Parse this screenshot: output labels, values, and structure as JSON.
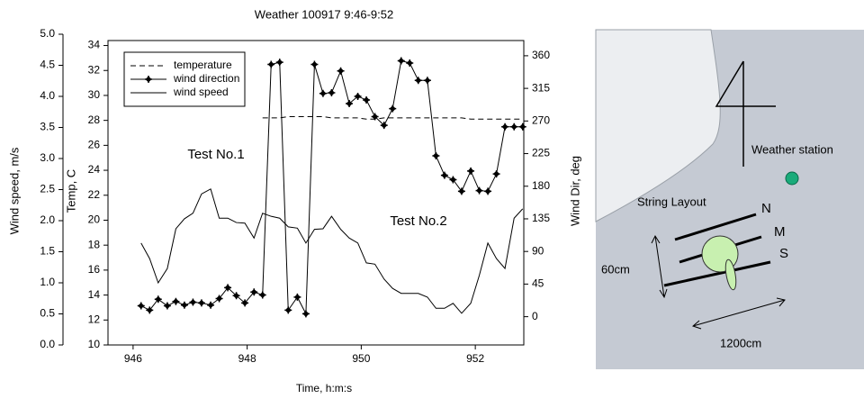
{
  "chart_data": {
    "type": "line",
    "title": "Weather 100917 9:46-9:52",
    "x_label": "Time, h:m:s",
    "y_label": "Temp, C",
    "y2_label": "Wind Dir, deg",
    "y3_label": "Wind speed, m/s",
    "annotations": [
      "Test No.1",
      "Test No.2"
    ],
    "legend": "upper left",
    "x": [
      946.14,
      946.29,
      946.44,
      946.6,
      946.75,
      946.9,
      947.05,
      947.2,
      947.36,
      947.51,
      947.66,
      947.81,
      947.96,
      948.12,
      948.27,
      948.42,
      948.57,
      948.72,
      948.88,
      949.03,
      949.18,
      949.33,
      949.48,
      949.64,
      949.79,
      949.94,
      950.09,
      950.24,
      950.4,
      950.55,
      950.7,
      950.85,
      951.0,
      951.16,
      951.31,
      951.46,
      951.61,
      951.76,
      951.92,
      952.07,
      952.22,
      952.37,
      952.52,
      952.68,
      952.83
    ],
    "xlim": [
      945.56,
      952.85
    ],
    "xticks": [
      946,
      948,
      950,
      952
    ],
    "ylim": [
      10,
      34.4
    ],
    "yticks": [
      10,
      12,
      14,
      16,
      18,
      20,
      22,
      24,
      26,
      28,
      30,
      32,
      34
    ],
    "y2lim": [
      -39,
      381
    ],
    "y2ticks": [
      0,
      45,
      90,
      135,
      180,
      225,
      270,
      315,
      360
    ],
    "y3lim": [
      0,
      5
    ],
    "y3ticks": [
      {
        "value": 0,
        "label": "0.0"
      },
      0.5,
      {
        "value": 1,
        "label": "1.0"
      },
      1.5,
      {
        "value": 2,
        "label": "2.0"
      },
      2.5,
      {
        "value": 3,
        "label": "3.0"
      },
      3.5,
      {
        "value": 4,
        "label": "4.0"
      },
      4.5,
      {
        "value": 5,
        "label": "5.0"
      }
    ],
    "series": [
      {
        "name": "temperature",
        "color": "#000000",
        "dash": true,
        "values": [
          null,
          null,
          null,
          null,
          null,
          null,
          null,
          null,
          null,
          null,
          null,
          null,
          null,
          null,
          28.2,
          28.2,
          28.2,
          28.3,
          28.3,
          28.3,
          28.3,
          28.3,
          28.2,
          28.2,
          28.2,
          28.2,
          28.1,
          28.1,
          28.2,
          28.2,
          28.2,
          28.2,
          28.2,
          28.2,
          28.2,
          28.2,
          28.2,
          28.2,
          28.1,
          28.1,
          28.1,
          28.1,
          28.1,
          28.1,
          28.1
        ]
      },
      {
        "name": "wind direction",
        "color": "#000000",
        "axis": "y2",
        "marker": true,
        "values": [
          15,
          9,
          24,
          15,
          21,
          16,
          20,
          19,
          16,
          25,
          40,
          29,
          19,
          34,
          30,
          348,
          351,
          9,
          27,
          4,
          348,
          308,
          309,
          339,
          294,
          304,
          299,
          276,
          264,
          287,
          353,
          350,
          326,
          326,
          222,
          195,
          189,
          173,
          201,
          174,
          173,
          197,
          262,
          262,
          262
        ]
      },
      {
        "name": "wind speed",
        "color": "#000000",
        "axis": "y3",
        "values": [
          1.64,
          1.39,
          1.0,
          1.23,
          1.87,
          2.03,
          2.12,
          2.43,
          2.51,
          2.04,
          2.04,
          1.97,
          1.96,
          1.72,
          2.12,
          2.07,
          2.04,
          1.9,
          1.88,
          1.64,
          1.86,
          1.87,
          2.07,
          1.86,
          1.72,
          1.64,
          1.32,
          1.3,
          1.06,
          0.91,
          0.83,
          0.83,
          0.83,
          0.77,
          0.59,
          0.59,
          0.67,
          0.51,
          0.67,
          1.12,
          1.64,
          1.39,
          1.23,
          2.04,
          2.19
        ]
      }
    ]
  },
  "diagram": {
    "labels": [
      "Weather station",
      "String Layout",
      "N",
      "M",
      "S",
      "60cm",
      "1200cm"
    ]
  }
}
